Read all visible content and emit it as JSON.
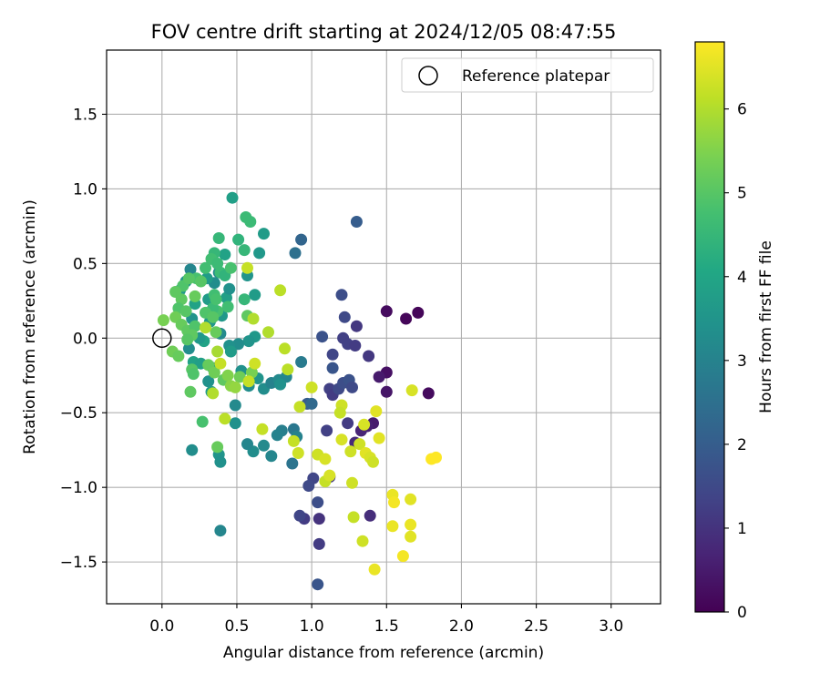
{
  "chart_data": {
    "type": "scatter",
    "title": "FOV centre drift starting at 2024/12/05 08:47:55",
    "xlabel": "Angular distance from reference (arcmin)",
    "ylabel": "Rotation from reference (arcmin)",
    "xlim": [
      -0.37,
      3.33
    ],
    "ylim": [
      -1.78,
      1.93
    ],
    "xticks": [
      0.0,
      0.5,
      1.0,
      1.5,
      2.0,
      2.5,
      3.0
    ],
    "xtick_labels": [
      "0.0",
      "0.5",
      "1.0",
      "1.5",
      "2.0",
      "2.5",
      "3.0"
    ],
    "yticks": [
      -1.5,
      -1.0,
      -0.5,
      0.0,
      0.5,
      1.0,
      1.5
    ],
    "ytick_labels": [
      "−1.5",
      "−1.0",
      "−0.5",
      "0.0",
      "0.5",
      "1.0",
      "1.5"
    ],
    "grid": true,
    "legend": {
      "position": "top-right",
      "entries": [
        "Reference platepar"
      ]
    },
    "reference_point": {
      "x": 0.0,
      "y": 0.0,
      "marker": "open-circle"
    },
    "colorbar": {
      "label": "Hours from first FF file",
      "colormap": "viridis",
      "range": [
        0,
        6.8
      ],
      "ticks": [
        0,
        1,
        2,
        3,
        4,
        5,
        6
      ],
      "tick_labels": [
        "0",
        "1",
        "2",
        "3",
        "4",
        "5",
        "6"
      ]
    },
    "series": [
      {
        "points": [
          {
            "x": 1.5,
            "y": 0.18,
            "c": 0.2
          },
          {
            "x": 1.63,
            "y": 0.13,
            "c": 0.1
          },
          {
            "x": 1.71,
            "y": 0.17,
            "c": 0.1
          },
          {
            "x": 1.78,
            "y": -0.37,
            "c": 0.2
          },
          {
            "x": 1.5,
            "y": -0.36,
            "c": 0.4
          },
          {
            "x": 1.5,
            "y": -0.23,
            "c": 0.3
          },
          {
            "x": 1.45,
            "y": -0.26,
            "c": 0.5
          },
          {
            "x": 1.41,
            "y": -0.57,
            "c": 0.5
          },
          {
            "x": 1.37,
            "y": -0.59,
            "c": 0.6
          },
          {
            "x": 1.33,
            "y": -0.62,
            "c": 0.7
          },
          {
            "x": 1.29,
            "y": -0.7,
            "c": 0.8
          },
          {
            "x": 1.39,
            "y": -1.19,
            "c": 0.9
          },
          {
            "x": 1.3,
            "y": 0.08,
            "c": 1.1
          },
          {
            "x": 1.38,
            "y": -0.12,
            "c": 1.1
          },
          {
            "x": 1.24,
            "y": -0.57,
            "c": 1.2
          },
          {
            "x": 1.21,
            "y": 0.0,
            "c": 1.3
          },
          {
            "x": 1.24,
            "y": -0.04,
            "c": 1.3
          },
          {
            "x": 1.29,
            "y": -0.05,
            "c": 1.2
          },
          {
            "x": 1.22,
            "y": 0.14,
            "c": 1.5
          },
          {
            "x": 1.2,
            "y": 0.29,
            "c": 1.6
          },
          {
            "x": 1.3,
            "y": 0.78,
            "c": 2.0
          },
          {
            "x": 1.14,
            "y": -0.11,
            "c": 1.4
          },
          {
            "x": 1.12,
            "y": -0.34,
            "c": 1.3
          },
          {
            "x": 1.14,
            "y": -0.38,
            "c": 1.2
          },
          {
            "x": 1.18,
            "y": -0.34,
            "c": 1.5
          },
          {
            "x": 1.21,
            "y": -0.3,
            "c": 1.6
          },
          {
            "x": 1.25,
            "y": -0.28,
            "c": 1.7
          },
          {
            "x": 1.27,
            "y": -0.33,
            "c": 1.5
          },
          {
            "x": 1.14,
            "y": -0.2,
            "c": 1.8
          },
          {
            "x": 1.07,
            "y": 0.01,
            "c": 1.7
          },
          {
            "x": 1.1,
            "y": -0.62,
            "c": 1.3
          },
          {
            "x": 1.12,
            "y": -0.93,
            "c": 1.1
          },
          {
            "x": 1.01,
            "y": -0.94,
            "c": 1.4
          },
          {
            "x": 0.98,
            "y": -0.99,
            "c": 1.5
          },
          {
            "x": 1.04,
            "y": -1.1,
            "c": 1.6
          },
          {
            "x": 1.05,
            "y": -1.38,
            "c": 1.2
          },
          {
            "x": 1.04,
            "y": -1.65,
            "c": 1.8
          },
          {
            "x": 0.95,
            "y": -1.21,
            "c": 1.2
          },
          {
            "x": 0.92,
            "y": -1.19,
            "c": 1.4
          },
          {
            "x": 1.05,
            "y": -1.21,
            "c": 1.0
          },
          {
            "x": 0.97,
            "y": -0.44,
            "c": 2.0
          },
          {
            "x": 1.0,
            "y": -0.44,
            "c": 2.3
          },
          {
            "x": 0.93,
            "y": 0.66,
            "c": 2.2
          },
          {
            "x": 0.89,
            "y": 0.57,
            "c": 2.5
          },
          {
            "x": 0.93,
            "y": -0.16,
            "c": 2.8
          },
          {
            "x": 0.88,
            "y": -0.61,
            "c": 2.7
          },
          {
            "x": 0.9,
            "y": -0.66,
            "c": 3.0
          },
          {
            "x": 0.8,
            "y": -0.62,
            "c": 2.9
          },
          {
            "x": 0.87,
            "y": -0.84,
            "c": 2.6
          },
          {
            "x": 0.77,
            "y": -0.65,
            "c": 3.0
          },
          {
            "x": 0.73,
            "y": -0.79,
            "c": 3.1
          },
          {
            "x": 0.68,
            "y": -0.72,
            "c": 3.2
          },
          {
            "x": 0.61,
            "y": -0.76,
            "c": 3.3
          },
          {
            "x": 0.57,
            "y": -0.71,
            "c": 3.1
          },
          {
            "x": 0.49,
            "y": -0.57,
            "c": 3.4
          },
          {
            "x": 0.49,
            "y": -0.45,
            "c": 3.2
          },
          {
            "x": 0.38,
            "y": -0.78,
            "c": 3.5
          },
          {
            "x": 0.39,
            "y": -0.83,
            "c": 3.4
          },
          {
            "x": 0.39,
            "y": -1.29,
            "c": 3.1
          },
          {
            "x": 0.2,
            "y": -0.75,
            "c": 3.3
          },
          {
            "x": 0.68,
            "y": -0.34,
            "c": 3.3
          },
          {
            "x": 0.73,
            "y": -0.3,
            "c": 3.0
          },
          {
            "x": 0.78,
            "y": -0.28,
            "c": 3.2
          },
          {
            "x": 0.83,
            "y": -0.26,
            "c": 3.1
          },
          {
            "x": 0.79,
            "y": -0.31,
            "c": 3.4
          },
          {
            "x": 0.64,
            "y": -0.27,
            "c": 3.5
          },
          {
            "x": 0.58,
            "y": -0.32,
            "c": 3.3
          },
          {
            "x": 0.53,
            "y": -0.22,
            "c": 3.4
          },
          {
            "x": 0.62,
            "y": 0.01,
            "c": 3.6
          },
          {
            "x": 0.58,
            "y": -0.02,
            "c": 3.5
          },
          {
            "x": 0.51,
            "y": -0.04,
            "c": 3.3
          },
          {
            "x": 0.45,
            "y": -0.05,
            "c": 3.4
          },
          {
            "x": 0.46,
            "y": -0.09,
            "c": 3.7
          },
          {
            "x": 0.39,
            "y": 0.03,
            "c": 3.2
          },
          {
            "x": 0.4,
            "y": 0.15,
            "c": 3.6
          },
          {
            "x": 0.43,
            "y": 0.27,
            "c": 3.8
          },
          {
            "x": 0.45,
            "y": 0.33,
            "c": 3.4
          },
          {
            "x": 0.62,
            "y": 0.29,
            "c": 3.7
          },
          {
            "x": 0.68,
            "y": 0.7,
            "c": 3.7
          },
          {
            "x": 0.65,
            "y": 0.57,
            "c": 3.6
          },
          {
            "x": 0.57,
            "y": 0.42,
            "c": 3.5
          },
          {
            "x": 0.47,
            "y": 0.94,
            "c": 3.8
          },
          {
            "x": 0.42,
            "y": 0.56,
            "c": 3.9
          },
          {
            "x": 0.38,
            "y": 0.44,
            "c": 3.2
          },
          {
            "x": 0.35,
            "y": 0.37,
            "c": 3.3
          },
          {
            "x": 0.32,
            "y": 0.11,
            "c": 3.6
          },
          {
            "x": 0.34,
            "y": -0.2,
            "c": 3.5
          },
          {
            "x": 0.31,
            "y": -0.29,
            "c": 3.4
          },
          {
            "x": 0.33,
            "y": -0.36,
            "c": 3.7
          },
          {
            "x": 0.22,
            "y": 0.23,
            "c": 3.9
          },
          {
            "x": 0.19,
            "y": 0.46,
            "c": 3.1
          },
          {
            "x": 0.16,
            "y": 0.38,
            "c": 3.5
          },
          {
            "x": 0.12,
            "y": 0.32,
            "c": 3.6
          },
          {
            "x": 0.18,
            "y": -0.07,
            "c": 3.3
          },
          {
            "x": 0.21,
            "y": -0.16,
            "c": 3.9
          },
          {
            "x": 0.26,
            "y": -0.17,
            "c": 3.8
          },
          {
            "x": 0.28,
            "y": -0.02,
            "c": 3.9
          },
          {
            "x": 0.25,
            "y": 0.0,
            "c": 3.6
          },
          {
            "x": 0.3,
            "y": 0.4,
            "c": 3.7
          },
          {
            "x": 0.31,
            "y": 0.26,
            "c": 3.7
          },
          {
            "x": 0.2,
            "y": 0.13,
            "c": 3.5
          },
          {
            "x": 0.56,
            "y": 0.81,
            "c": 4.6
          },
          {
            "x": 0.59,
            "y": 0.78,
            "c": 4.6
          },
          {
            "x": 0.38,
            "y": 0.67,
            "c": 4.5
          },
          {
            "x": 0.51,
            "y": 0.66,
            "c": 4.4
          },
          {
            "x": 0.55,
            "y": 0.59,
            "c": 4.5
          },
          {
            "x": 0.35,
            "y": 0.57,
            "c": 4.5
          },
          {
            "x": 0.33,
            "y": 0.53,
            "c": 4.7
          },
          {
            "x": 0.37,
            "y": 0.5,
            "c": 4.6
          },
          {
            "x": 0.29,
            "y": 0.47,
            "c": 4.7
          },
          {
            "x": 0.39,
            "y": 0.44,
            "c": 4.6
          },
          {
            "x": 0.42,
            "y": 0.42,
            "c": 4.4
          },
          {
            "x": 0.46,
            "y": 0.47,
            "c": 4.8
          },
          {
            "x": 0.55,
            "y": 0.26,
            "c": 4.5
          },
          {
            "x": 0.44,
            "y": 0.21,
            "c": 4.7
          },
          {
            "x": 0.37,
            "y": 0.18,
            "c": 4.8
          },
          {
            "x": 0.34,
            "y": 0.2,
            "c": 4.6
          },
          {
            "x": 0.29,
            "y": 0.17,
            "c": 4.9
          },
          {
            "x": 0.35,
            "y": 0.29,
            "c": 4.7
          },
          {
            "x": 0.36,
            "y": 0.26,
            "c": 4.8
          },
          {
            "x": 0.23,
            "y": 0.4,
            "c": 4.8
          },
          {
            "x": 0.26,
            "y": 0.38,
            "c": 5.0
          },
          {
            "x": 0.14,
            "y": 0.35,
            "c": 4.9
          },
          {
            "x": 0.09,
            "y": 0.31,
            "c": 5.1
          },
          {
            "x": 0.18,
            "y": 0.4,
            "c": 5.0
          },
          {
            "x": 0.13,
            "y": 0.26,
            "c": 5.1
          },
          {
            "x": 0.22,
            "y": 0.28,
            "c": 5.2
          },
          {
            "x": 0.11,
            "y": 0.2,
            "c": 4.9
          },
          {
            "x": 0.16,
            "y": 0.18,
            "c": 5.0
          },
          {
            "x": 0.09,
            "y": 0.14,
            "c": 5.3
          },
          {
            "x": 0.01,
            "y": 0.12,
            "c": 5.4
          },
          {
            "x": 0.13,
            "y": 0.09,
            "c": 5.2
          },
          {
            "x": 0.17,
            "y": 0.05,
            "c": 5.1
          },
          {
            "x": 0.22,
            "y": 0.08,
            "c": 4.9
          },
          {
            "x": 0.2,
            "y": 0.02,
            "c": 5.1
          },
          {
            "x": 0.17,
            "y": -0.01,
            "c": 5.0
          },
          {
            "x": 0.36,
            "y": 0.04,
            "c": 5.2
          },
          {
            "x": 0.34,
            "y": 0.14,
            "c": 5.0
          },
          {
            "x": 0.57,
            "y": 0.15,
            "c": 5.1
          },
          {
            "x": 0.07,
            "y": -0.09,
            "c": 5.3
          },
          {
            "x": 0.11,
            "y": -0.12,
            "c": 5.2
          },
          {
            "x": 0.2,
            "y": -0.21,
            "c": 5.0
          },
          {
            "x": 0.21,
            "y": -0.24,
            "c": 4.9
          },
          {
            "x": 0.19,
            "y": -0.36,
            "c": 5.1
          },
          {
            "x": 0.27,
            "y": -0.56,
            "c": 4.8
          },
          {
            "x": 0.31,
            "y": -0.18,
            "c": 5.2
          },
          {
            "x": 0.35,
            "y": -0.23,
            "c": 5.3
          },
          {
            "x": 0.41,
            "y": -0.28,
            "c": 5.1
          },
          {
            "x": 0.44,
            "y": -0.25,
            "c": 5.5
          },
          {
            "x": 0.52,
            "y": -0.26,
            "c": 5.3
          },
          {
            "x": 0.6,
            "y": -0.23,
            "c": 5.4
          },
          {
            "x": 0.37,
            "y": -0.73,
            "c": 5.2
          },
          {
            "x": 0.46,
            "y": -0.32,
            "c": 5.6
          },
          {
            "x": 0.49,
            "y": -0.33,
            "c": 5.7
          },
          {
            "x": 0.57,
            "y": 0.47,
            "c": 6.2
          },
          {
            "x": 0.79,
            "y": 0.32,
            "c": 6.1
          },
          {
            "x": 0.71,
            "y": 0.04,
            "c": 6.0
          },
          {
            "x": 0.61,
            "y": 0.13,
            "c": 6.0
          },
          {
            "x": 0.37,
            "y": -0.09,
            "c": 5.9
          },
          {
            "x": 0.29,
            "y": 0.07,
            "c": 6.0
          },
          {
            "x": 0.39,
            "y": -0.17,
            "c": 6.2
          },
          {
            "x": 0.42,
            "y": -0.54,
            "c": 6.1
          },
          {
            "x": 0.34,
            "y": -0.37,
            "c": 6.0
          },
          {
            "x": 0.62,
            "y": -0.17,
            "c": 6.3
          },
          {
            "x": 0.58,
            "y": -0.29,
            "c": 6.2
          },
          {
            "x": 0.67,
            "y": -0.61,
            "c": 6.2
          },
          {
            "x": 0.82,
            "y": -0.07,
            "c": 6.1
          },
          {
            "x": 0.84,
            "y": -0.21,
            "c": 6.1
          },
          {
            "x": 0.92,
            "y": -0.46,
            "c": 6.2
          },
          {
            "x": 0.91,
            "y": -0.77,
            "c": 6.3
          },
          {
            "x": 0.88,
            "y": -0.69,
            "c": 6.2
          },
          {
            "x": 1.0,
            "y": -0.33,
            "c": 6.3
          },
          {
            "x": 1.04,
            "y": -0.78,
            "c": 6.3
          },
          {
            "x": 1.09,
            "y": -0.81,
            "c": 6.4
          },
          {
            "x": 1.09,
            "y": -0.96,
            "c": 6.2
          },
          {
            "x": 1.12,
            "y": -0.92,
            "c": 6.4
          },
          {
            "x": 1.2,
            "y": -0.45,
            "c": 6.3
          },
          {
            "x": 1.19,
            "y": -0.5,
            "c": 6.2
          },
          {
            "x": 1.2,
            "y": -0.68,
            "c": 6.4
          },
          {
            "x": 1.26,
            "y": -0.76,
            "c": 6.3
          },
          {
            "x": 1.27,
            "y": -0.97,
            "c": 6.3
          },
          {
            "x": 1.28,
            "y": -1.2,
            "c": 6.2
          },
          {
            "x": 1.34,
            "y": -1.36,
            "c": 6.3
          },
          {
            "x": 1.35,
            "y": -0.58,
            "c": 6.4
          },
          {
            "x": 1.32,
            "y": -0.71,
            "c": 6.3
          },
          {
            "x": 1.36,
            "y": -0.77,
            "c": 6.5
          },
          {
            "x": 1.39,
            "y": -0.8,
            "c": 6.4
          },
          {
            "x": 1.41,
            "y": -0.83,
            "c": 6.3
          },
          {
            "x": 1.43,
            "y": -0.49,
            "c": 6.5
          },
          {
            "x": 1.45,
            "y": -0.67,
            "c": 6.5
          },
          {
            "x": 1.42,
            "y": -1.55,
            "c": 6.6
          },
          {
            "x": 1.54,
            "y": -1.05,
            "c": 6.6
          },
          {
            "x": 1.55,
            "y": -1.1,
            "c": 6.7
          },
          {
            "x": 1.54,
            "y": -1.26,
            "c": 6.6
          },
          {
            "x": 1.61,
            "y": -1.46,
            "c": 6.7
          },
          {
            "x": 1.66,
            "y": -1.08,
            "c": 6.5
          },
          {
            "x": 1.66,
            "y": -1.25,
            "c": 6.6
          },
          {
            "x": 1.66,
            "y": -1.33,
            "c": 6.5
          },
          {
            "x": 1.67,
            "y": -0.35,
            "c": 6.4
          },
          {
            "x": 1.8,
            "y": -0.81,
            "c": 6.8
          },
          {
            "x": 1.83,
            "y": -0.8,
            "c": 6.8
          }
        ]
      }
    ]
  }
}
